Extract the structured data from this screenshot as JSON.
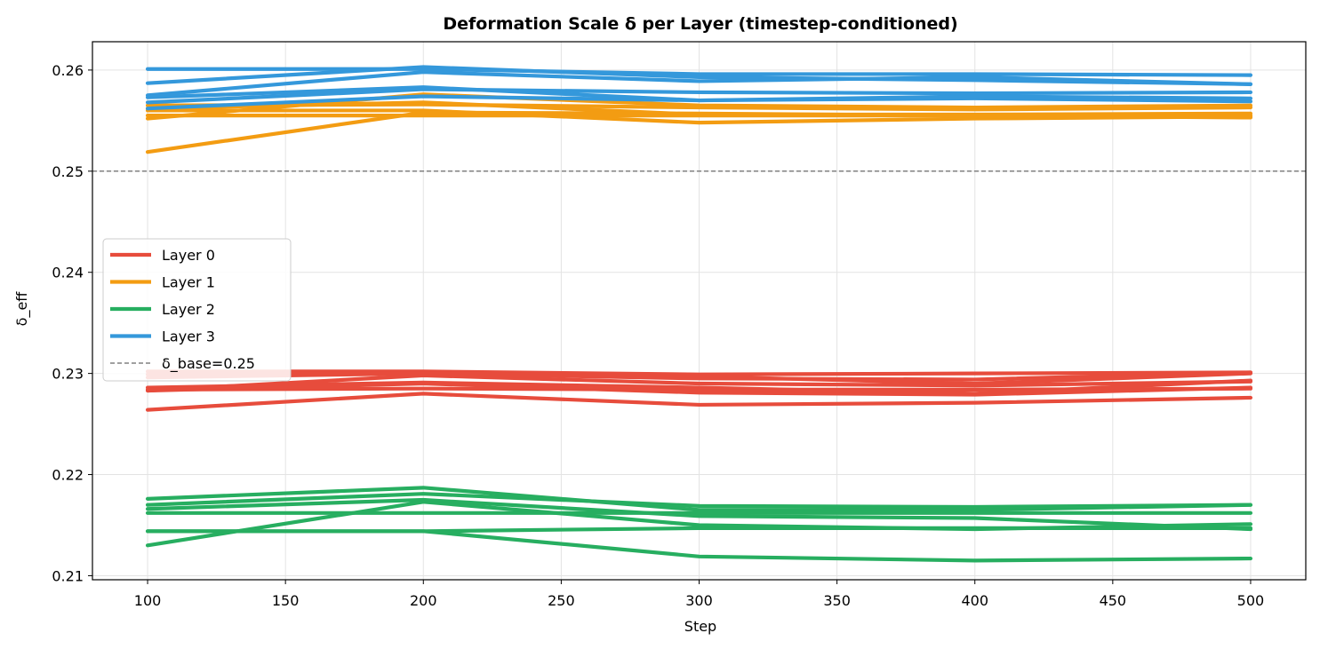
{
  "chart_data": {
    "type": "line",
    "title": "Deformation Scale δ per Layer (timestep-conditioned)",
    "xlabel": "Step",
    "ylabel": "δ_eff",
    "x": [
      100,
      200,
      300,
      400,
      500
    ],
    "xlim": [
      80,
      520
    ],
    "ylim": [
      0.2096,
      0.2628
    ],
    "xticks": [
      100,
      150,
      200,
      250,
      300,
      350,
      400,
      450,
      500
    ],
    "yticks": [
      0.21,
      0.22,
      0.23,
      0.24,
      0.25,
      0.26
    ],
    "ytick_labels": [
      "0.21",
      "0.22",
      "0.23",
      "0.24",
      "0.25",
      "0.26"
    ],
    "grid": true,
    "legend_position": "center-left",
    "reference_line": {
      "label": "δ_base=0.25",
      "y": 0.25,
      "color": "#808080"
    },
    "groups": [
      {
        "name": "Layer 0",
        "color": "#e74c3c",
        "series": [
          [
            0.2284,
            0.2285,
            0.2284,
            0.2284,
            0.2285
          ],
          [
            0.2302,
            0.2302,
            0.2299,
            0.23,
            0.2301
          ],
          [
            0.2264,
            0.228,
            0.2269,
            0.2271,
            0.2276
          ],
          [
            0.2283,
            0.2298,
            0.229,
            0.2288,
            0.2292
          ],
          [
            0.2286,
            0.2291,
            0.2286,
            0.228,
            0.2293
          ],
          [
            0.2296,
            0.23,
            0.2295,
            0.2294,
            0.2301
          ],
          [
            0.2299,
            0.2301,
            0.2297,
            0.229,
            0.23
          ],
          [
            0.2283,
            0.229,
            0.2281,
            0.2279,
            0.2286
          ]
        ]
      },
      {
        "name": "Layer 1",
        "color": "#f39c12",
        "series": [
          [
            0.2519,
            0.2558,
            0.2557,
            0.2555,
            0.2553
          ],
          [
            0.2552,
            0.2576,
            0.2565,
            0.2563,
            0.2565
          ],
          [
            0.256,
            0.256,
            0.2548,
            0.2552,
            0.2554
          ],
          [
            0.2555,
            0.2555,
            0.2555,
            0.2555,
            0.2555
          ],
          [
            0.2565,
            0.2566,
            0.2563,
            0.2561,
            0.2563
          ],
          [
            0.2562,
            0.2568,
            0.2556,
            0.2556,
            0.2557
          ]
        ]
      },
      {
        "name": "Layer 2",
        "color": "#27ae60",
        "series": [
          [
            0.2176,
            0.2187,
            0.2165,
            0.2165,
            0.217
          ],
          [
            0.2162,
            0.2162,
            0.2162,
            0.2162,
            0.2162
          ],
          [
            0.213,
            0.2173,
            0.215,
            0.2146,
            0.2151
          ],
          [
            0.2144,
            0.2144,
            0.2119,
            0.2115,
            0.2117
          ],
          [
            0.217,
            0.2181,
            0.2169,
            0.2168,
            0.217
          ],
          [
            0.2144,
            0.2144,
            0.2147,
            0.2147,
            0.2147
          ],
          [
            0.2166,
            0.2175,
            0.2159,
            0.2157,
            0.2146
          ]
        ]
      },
      {
        "name": "Layer 3",
        "color": "#3498db",
        "series": [
          [
            0.2601,
            0.2601,
            0.2596,
            0.2596,
            0.2595
          ],
          [
            0.2587,
            0.2603,
            0.2593,
            0.259,
            0.2586
          ],
          [
            0.2573,
            0.2583,
            0.257,
            0.2574,
            0.2572
          ],
          [
            0.2568,
            0.2581,
            0.2578,
            0.2577,
            0.2578
          ],
          [
            0.2562,
            0.2574,
            0.257,
            0.2572,
            0.2569
          ],
          [
            0.2575,
            0.2598,
            0.2589,
            0.2593,
            0.2586
          ]
        ]
      }
    ]
  }
}
